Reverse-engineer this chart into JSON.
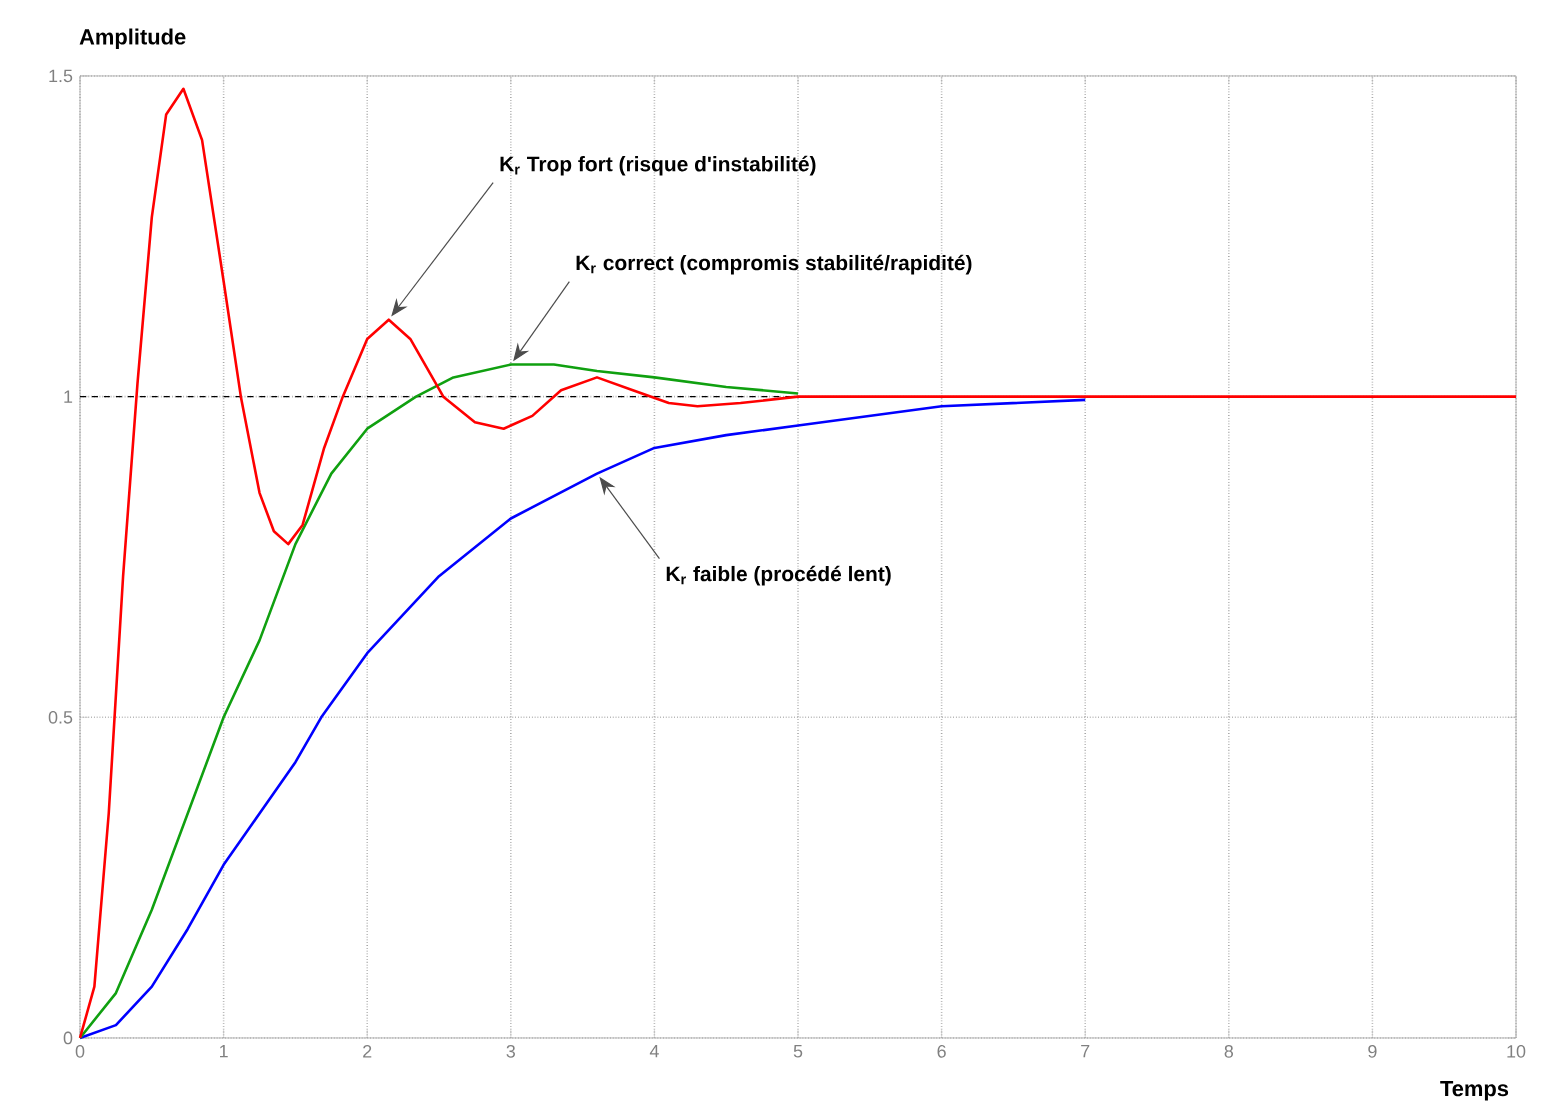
{
  "chart_data": {
    "type": "line",
    "xlabel": "Temps",
    "ylabel": "Amplitude",
    "xlim": [
      0,
      10
    ],
    "ylim": [
      0,
      1.5
    ],
    "xticks": [
      0,
      1,
      2,
      3,
      4,
      5,
      6,
      7,
      8,
      9,
      10
    ],
    "yticks": [
      0,
      0.5,
      1,
      1.5
    ],
    "grid": true,
    "line_style": "solid",
    "ref_lines": [
      {
        "axis": "y",
        "value": 1,
        "color": "#000000",
        "line_style": "dashed"
      }
    ],
    "series": [
      {
        "color": "#0000ff",
        "x": [
          0,
          0.25,
          0.5,
          0.75,
          1,
          1.25,
          1.5,
          1.68,
          2,
          2.5,
          3,
          3.6,
          4,
          4.5,
          5,
          6,
          7
        ],
        "values": [
          0,
          0.02,
          0.08,
          0.17,
          0.27,
          0.35,
          0.43,
          0.5,
          0.6,
          0.72,
          0.81,
          0.88,
          0.92,
          0.94,
          0.955,
          0.985,
          0.995
        ]
      },
      {
        "color": "#10a010",
        "x": [
          0,
          0.25,
          0.5,
          0.75,
          1,
          1.25,
          1.5,
          1.75,
          2,
          2.34,
          2.6,
          3.0,
          3.3,
          3.6,
          4,
          4.5,
          5
        ],
        "values": [
          0,
          0.07,
          0.2,
          0.35,
          0.5,
          0.62,
          0.77,
          0.88,
          0.95,
          1.0,
          1.03,
          1.05,
          1.05,
          1.04,
          1.03,
          1.015,
          1.005
        ]
      },
      {
        "color": "#ff0000",
        "x": [
          0,
          0.1,
          0.2,
          0.3,
          0.4,
          0.5,
          0.6,
          0.72,
          0.85,
          1.0,
          1.12,
          1.25,
          1.35,
          1.45,
          1.55,
          1.7,
          1.83,
          2.0,
          2.15,
          2.3,
          2.53,
          2.75,
          2.95,
          3.15,
          3.35,
          3.6,
          3.85,
          4.1,
          4.3,
          4.6,
          5.0,
          5.5,
          6,
          7,
          8,
          9,
          10
        ],
        "values": [
          0,
          0.08,
          0.35,
          0.72,
          1.02,
          1.28,
          1.44,
          1.48,
          1.4,
          1.18,
          1.0,
          0.85,
          0.79,
          0.77,
          0.8,
          0.92,
          1.0,
          1.09,
          1.12,
          1.09,
          1.0,
          0.96,
          0.95,
          0.97,
          1.01,
          1.03,
          1.01,
          0.99,
          0.985,
          0.99,
          1.0,
          1.0,
          1,
          1,
          1,
          1,
          1
        ]
      }
    ],
    "annotations": [
      {
        "text": "K$_{r}$ Trop fort (risque d'instabilité)",
        "x": 2.15,
        "y": 1.12
      },
      {
        "text": "K$_{r}$ correct (compromis stabilité/rapidité)",
        "x": 3.0,
        "y": 1.05
      },
      {
        "text": "K$_{r}$ faible (procédé lent)",
        "x": 3.6,
        "y": 0.88
      }
    ]
  }
}
